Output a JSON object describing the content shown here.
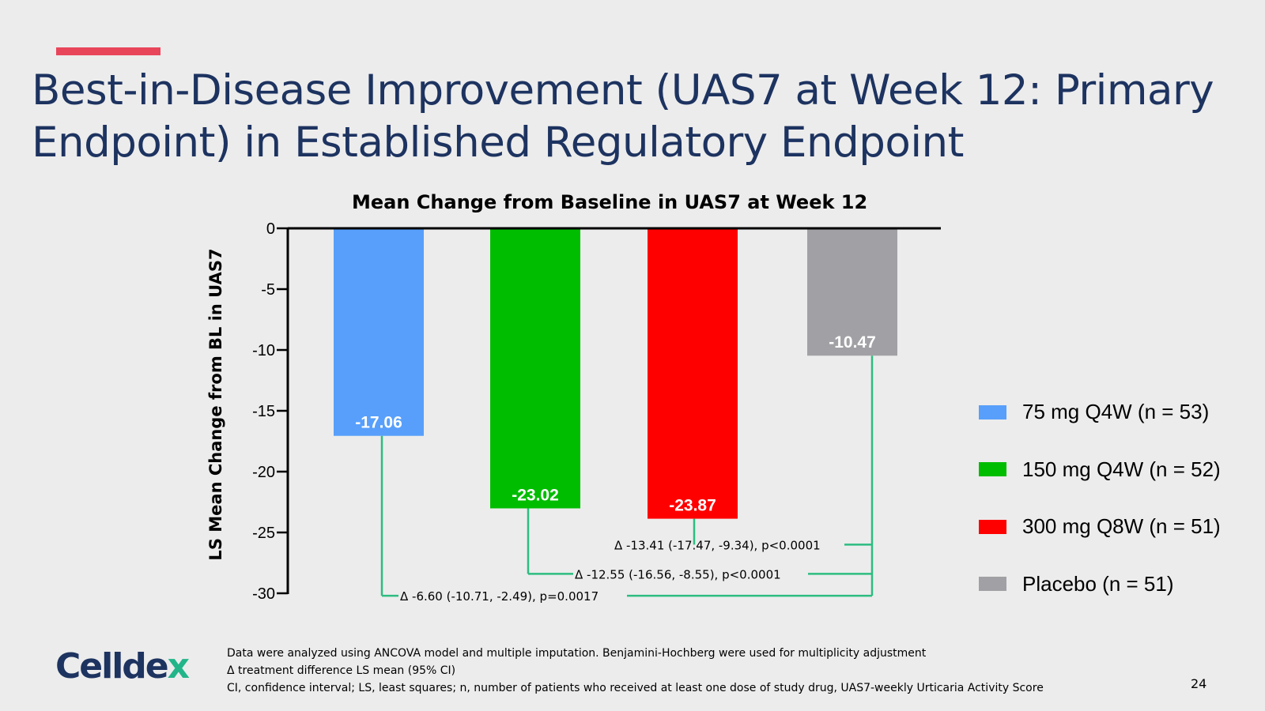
{
  "slide": {
    "title": "Best-in-Disease Improvement (UAS7 at Week 12: Primary Endpoint) in Established Regulatory Endpoint",
    "accent_color": "#e8455a",
    "title_color": "#1d3360",
    "page_number": "24",
    "logo": {
      "text_main": "Celldex",
      "text_last": "x",
      "text_prefix": "Celld",
      "text_e": "e"
    },
    "footnotes": [
      "Data were analyzed using ANCOVA model and multiple imputation. Benjamini-Hochberg were used for multiplicity adjustment",
      "Δ treatment difference LS mean (95% CI)",
      "CI, confidence interval; LS, least squares; n, number of patients who received at least one dose of study drug, UAS7-weekly Urticaria Activity Score"
    ]
  },
  "chart_data": {
    "type": "bar",
    "title": "Mean Change from Baseline in UAS7 at Week 12",
    "ylabel": "LS Mean Change from BL in UAS7",
    "xlabel": "",
    "ylim": [
      -30,
      0
    ],
    "yticks": [
      "0",
      "-5",
      "-10",
      "-15",
      "-20",
      "-25",
      "-30"
    ],
    "ytick_values": [
      0,
      -5,
      -10,
      -15,
      -20,
      -25,
      -30
    ],
    "categories": [
      "75 mg Q4W (n = 53)",
      "150 mg Q4W (n = 52)",
      "300 mg Q8W (n = 51)",
      "Placebo (n = 51)"
    ],
    "values": [
      -17.06,
      -23.02,
      -23.87,
      -10.47
    ],
    "value_labels": [
      "-17.06",
      "-23.02",
      "-23.87",
      "-10.47"
    ],
    "colors": [
      "#579ffb",
      "#00bd00",
      "#ff0000",
      "#a1a1a5"
    ],
    "legend_position": "right",
    "comparisons": [
      {
        "from": 2,
        "to": 3,
        "label": "Δ -13.41 (-17.47, -9.34), p<0.0001",
        "level": -26
      },
      {
        "from": 1,
        "to": 3,
        "label": "Δ -12.55 (-16.56, -8.55), p<0.0001",
        "level": -28.4
      },
      {
        "from": 0,
        "to": 3,
        "label": "Δ -6.60 (-10.71, -2.49), p=0.0017",
        "level": -30.2
      }
    ],
    "comparison_color": "#2dbd80"
  }
}
